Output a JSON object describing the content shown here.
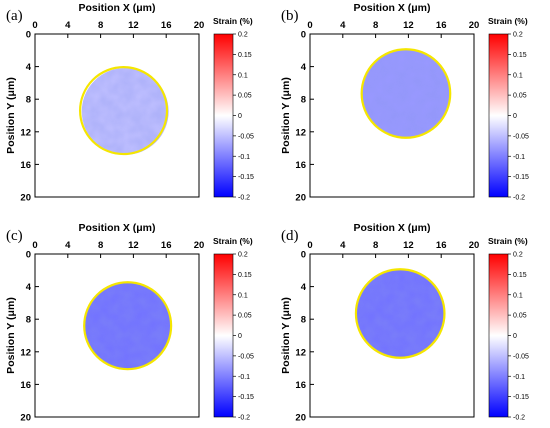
{
  "chart_data": [
    {
      "type": "heatmap",
      "panel_label": "(a)",
      "xlabel": "Position X (μm)",
      "ylabel": "Position Y (μm)",
      "x_ticks": [
        "0",
        "4",
        "8",
        "12",
        "16",
        "20"
      ],
      "y_ticks": [
        "0",
        "4",
        "8",
        "12",
        "16",
        "20"
      ],
      "xlim": [
        0,
        20
      ],
      "ylim": [
        20,
        0
      ],
      "colorbar": {
        "title": "Strain (%)",
        "ticks": [
          "0.2",
          "0.15",
          "0.1",
          "0.05",
          "0",
          "-0.05",
          "-0.1",
          "-0.15",
          "-0.2"
        ],
        "range": [
          -0.2,
          0.2
        ],
        "colors": [
          "#0000ff",
          "#ffffff",
          "#ff0000"
        ]
      },
      "particle": {
        "center_x": 11,
        "center_y": 9.5,
        "radius": 5.3,
        "mean_strain": -0.05
      },
      "outline": {
        "center_x": 10.8,
        "center_y": 9.4,
        "radius": 5.3,
        "color": "#f5e600"
      }
    },
    {
      "type": "heatmap",
      "panel_label": "(b)",
      "xlabel": "Position X (μm)",
      "ylabel": "Position Y (μm)",
      "x_ticks": [
        "0",
        "4",
        "8",
        "12",
        "16",
        "20"
      ],
      "y_ticks": [
        "0",
        "4",
        "8",
        "12",
        "16",
        "20"
      ],
      "xlim": [
        0,
        20
      ],
      "ylim": [
        20,
        0
      ],
      "colorbar": {
        "title": "Strain (%)",
        "ticks": [
          "0.2",
          "0.15",
          "0.1",
          "0.05",
          "0",
          "-0.05",
          "-0.1",
          "-0.15",
          "-0.2"
        ],
        "range": [
          -0.2,
          0.2
        ],
        "colors": [
          "#0000ff",
          "#ffffff",
          "#ff0000"
        ]
      },
      "particle": {
        "center_x": 11.7,
        "center_y": 7.3,
        "radius": 5.4,
        "mean_strain": -0.08
      },
      "outline": {
        "center_x": 11.7,
        "center_y": 7.3,
        "radius": 5.4,
        "color": "#f5e600"
      }
    },
    {
      "type": "heatmap",
      "panel_label": "(c)",
      "xlabel": "Position X (μm)",
      "ylabel": "Position Y (μm)",
      "x_ticks": [
        "0",
        "4",
        "8",
        "12",
        "16",
        "20"
      ],
      "y_ticks": [
        "0",
        "4",
        "8",
        "12",
        "16",
        "20"
      ],
      "xlim": [
        0,
        20
      ],
      "ylim": [
        20,
        0
      ],
      "colorbar": {
        "title": "Strain (%)",
        "ticks": [
          "0.2",
          "0.15",
          "0.1",
          "0.05",
          "0",
          "-0.05",
          "-0.1",
          "-0.15",
          "-0.2"
        ],
        "range": [
          -0.2,
          0.2
        ],
        "colors": [
          "#0000ff",
          "#ffffff",
          "#ff0000"
        ]
      },
      "particle": {
        "center_x": 11.3,
        "center_y": 8.8,
        "radius": 5.3,
        "mean_strain": -0.11
      },
      "outline": {
        "center_x": 11.3,
        "center_y": 8.8,
        "radius": 5.3,
        "color": "#f5e600"
      }
    },
    {
      "type": "heatmap",
      "panel_label": "(d)",
      "xlabel": "Position X (μm)",
      "ylabel": "Position Y (μm)",
      "x_ticks": [
        "0",
        "4",
        "8",
        "12",
        "16",
        "20"
      ],
      "y_ticks": [
        "0",
        "4",
        "8",
        "12",
        "16",
        "20"
      ],
      "xlim": [
        0,
        20
      ],
      "ylim": [
        20,
        0
      ],
      "colorbar": {
        "title": "Strain (%)",
        "ticks": [
          "0.2",
          "0.15",
          "0.1",
          "0.05",
          "0",
          "-0.05",
          "-0.1",
          "-0.15",
          "-0.2"
        ],
        "range": [
          -0.2,
          0.2
        ],
        "colors": [
          "#0000ff",
          "#ffffff",
          "#ff0000"
        ]
      },
      "particle": {
        "center_x": 11.0,
        "center_y": 7.3,
        "radius": 5.4,
        "mean_strain": -0.11
      },
      "outline": {
        "center_x": 11.0,
        "center_y": 7.3,
        "radius": 5.4,
        "color": "#f5e600"
      }
    }
  ]
}
